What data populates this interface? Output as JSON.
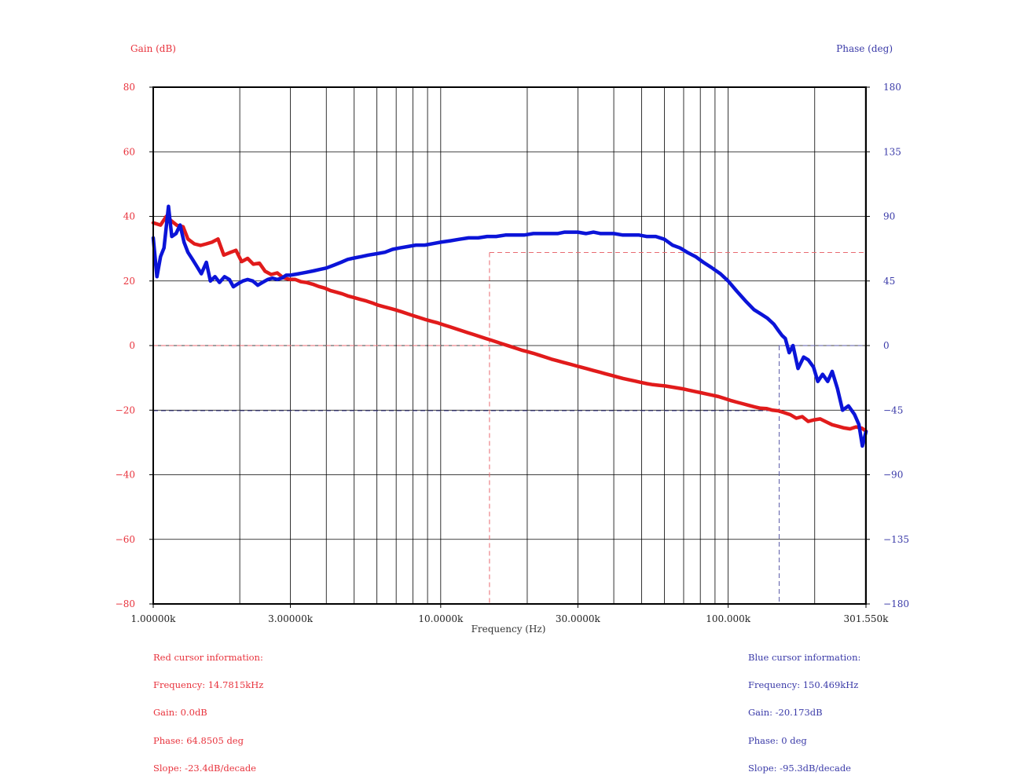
{
  "chart_data": {
    "type": "line",
    "xscale": "log",
    "xlabel": "Frequency (Hz)",
    "ylabel_left": "Gain (dB)",
    "ylabel_right": "Phase (deg)",
    "xlim": [
      1000,
      301550
    ],
    "ylim_left": [
      -80,
      80
    ],
    "ylim_right": [
      -180,
      180
    ],
    "grid": true,
    "x_ticks": [
      {
        "value": 1000,
        "label": "1.00000k"
      },
      {
        "value": 3000,
        "label": "3.00000k"
      },
      {
        "value": 10000,
        "label": "10.0000k"
      },
      {
        "value": 30000,
        "label": "30.0000k"
      },
      {
        "value": 100000,
        "label": "100.000k"
      },
      {
        "value": 301550,
        "label": "301.550k"
      }
    ],
    "left_ticks": [
      {
        "value": 80,
        "label": "80"
      },
      {
        "value": 60,
        "label": "60"
      },
      {
        "value": 40,
        "label": "40"
      },
      {
        "value": 20,
        "label": "20"
      },
      {
        "value": 0,
        "label": "0"
      },
      {
        "value": -20,
        "label": "−20"
      },
      {
        "value": -40,
        "label": "−40"
      },
      {
        "value": -60,
        "label": "−60"
      },
      {
        "value": -80,
        "label": "−80"
      }
    ],
    "right_ticks": [
      {
        "value": 180,
        "label": "180"
      },
      {
        "value": 135,
        "label": "135"
      },
      {
        "value": 90,
        "label": "90"
      },
      {
        "value": 45,
        "label": "45"
      },
      {
        "value": 0,
        "label": "0"
      },
      {
        "value": -45,
        "label": "−45"
      },
      {
        "value": -90,
        "label": "−90"
      },
      {
        "value": -135,
        "label": "−135"
      },
      {
        "value": -180,
        "label": "−180"
      }
    ],
    "series": [
      {
        "name": "Gain",
        "axis": "left",
        "color": "#e11b1b",
        "x": [
          1000,
          1060,
          1110,
          1160,
          1210,
          1270,
          1320,
          1390,
          1460,
          1530,
          1600,
          1680,
          1760,
          1850,
          1940,
          2030,
          2130,
          2230,
          2340,
          2450,
          2570,
          2700,
          2830,
          2970,
          3110,
          3260,
          3420,
          3590,
          3760,
          3950,
          4140,
          4340,
          4550,
          4780,
          5010,
          5250,
          5510,
          5780,
          6060,
          6360,
          6670,
          7000,
          7340,
          7700,
          8080,
          8470,
          8890,
          9320,
          9780,
          10260,
          10760,
          11290,
          11840,
          12420,
          13030,
          13670,
          14340,
          15040,
          15780,
          16550,
          17360,
          18210,
          19100,
          20040,
          21020,
          22050,
          23130,
          24260,
          25450,
          26700,
          28010,
          29380,
          30820,
          32330,
          33910,
          35580,
          37320,
          39150,
          41070,
          43080,
          45190,
          47400,
          49730,
          52160,
          54720,
          57400,
          60220,
          63170,
          66260,
          69510,
          72920,
          76490,
          80240,
          84170,
          88300,
          92630,
          97170,
          101930,
          106920,
          112160,
          117660,
          123430,
          129480,
          135830,
          142490,
          149470,
          156800,
          164480,
          172540,
          180990,
          189860,
          199160,
          208920,
          219160,
          229900,
          241170,
          252980,
          265380,
          278380,
          292030,
          301550
        ],
        "y": [
          38,
          37.3,
          40,
          38.5,
          37.2,
          36.8,
          33,
          31.5,
          31,
          31.5,
          32,
          33,
          28,
          28.8,
          29.5,
          26,
          27,
          25.2,
          25.5,
          23,
          22,
          22.5,
          21,
          20.5,
          20.5,
          19.8,
          19.5,
          19,
          18.3,
          17.8,
          17,
          16.5,
          16,
          15.3,
          14.8,
          14.3,
          13.8,
          13.2,
          12.5,
          12,
          11.5,
          11,
          10.4,
          9.8,
          9.2,
          8.6,
          8,
          7.5,
          7,
          6.4,
          5.8,
          5.2,
          4.6,
          4,
          3.4,
          2.8,
          2.2,
          1.6,
          1,
          0.4,
          -0.2,
          -0.8,
          -1.4,
          -1.9,
          -2.4,
          -3,
          -3.6,
          -4.2,
          -4.7,
          -5.2,
          -5.7,
          -6.2,
          -6.7,
          -7.2,
          -7.7,
          -8.2,
          -8.7,
          -9.2,
          -9.7,
          -10.2,
          -10.6,
          -11,
          -11.4,
          -11.8,
          -12.1,
          -12.3,
          -12.5,
          -12.8,
          -13.1,
          -13.4,
          -13.8,
          -14.2,
          -14.6,
          -15,
          -15.4,
          -15.8,
          -16.4,
          -17,
          -17.5,
          -18,
          -18.5,
          -19,
          -19.4,
          -19.5,
          -20,
          -20.2,
          -20.8,
          -21.4,
          -22.5,
          -22,
          -23.5,
          -23,
          -22.7,
          -23.6,
          -24.5,
          -25,
          -25.5,
          -25.8,
          -25.2,
          -25.6,
          -26.5
        ]
      },
      {
        "name": "Phase",
        "axis": "right",
        "color": "#0b14d8",
        "x": [
          1000,
          1030,
          1060,
          1090,
          1130,
          1160,
          1200,
          1240,
          1280,
          1320,
          1370,
          1420,
          1470,
          1530,
          1580,
          1640,
          1700,
          1770,
          1840,
          1900,
          1970,
          2050,
          2130,
          2220,
          2310,
          2400,
          2500,
          2600,
          2700,
          2800,
          2900,
          3000,
          3200,
          3400,
          3600,
          3800,
          4000,
          4250,
          4500,
          4750,
          5000,
          5300,
          5600,
          6000,
          6400,
          6800,
          7200,
          7700,
          8200,
          8800,
          9400,
          10000,
          10800,
          11600,
          12500,
          13500,
          14500,
          15600,
          16800,
          18000,
          19500,
          21000,
          22500,
          24000,
          25500,
          27000,
          28500,
          30000,
          32000,
          34000,
          36000,
          38000,
          40000,
          43000,
          46000,
          49000,
          52000,
          56000,
          60000,
          64000,
          68000,
          72000,
          77000,
          82000,
          88000,
          94000,
          100000,
          107000,
          115000,
          123000,
          130000,
          137000,
          144000,
          150000,
          154000,
          158000,
          163000,
          168000,
          175000,
          183000,
          190000,
          198000,
          205000,
          213000,
          222000,
          230000,
          240000,
          250000,
          262000,
          275000,
          285000,
          293000,
          301550
        ],
        "y": [
          75,
          48,
          62,
          68,
          97,
          76,
          78,
          84,
          72,
          65,
          60,
          55,
          50,
          58,
          45,
          48,
          44,
          48,
          46,
          41,
          43,
          45,
          46,
          45,
          42,
          44,
          46,
          47,
          46,
          47,
          49,
          49,
          50,
          51,
          52,
          53,
          54,
          56,
          58,
          60,
          61,
          62,
          63,
          64,
          65,
          67,
          68,
          69,
          70,
          70,
          71,
          72,
          73,
          74,
          75,
          75,
          76,
          76,
          77,
          77,
          77,
          78,
          78,
          78,
          78,
          79,
          79,
          79,
          78,
          79,
          78,
          78,
          78,
          77,
          77,
          77,
          76,
          76,
          74,
          70,
          68,
          65,
          62,
          58,
          54,
          50,
          45,
          38,
          31,
          25,
          22,
          19,
          15,
          10,
          7,
          5,
          -5,
          0,
          -16,
          -8,
          -10,
          -15,
          -25,
          -20,
          -25,
          -18,
          -30,
          -45,
          -42,
          -48,
          -55,
          -70,
          -60
        ]
      }
    ],
    "red_cursor": {
      "freq": 14781.5,
      "gain": 0.0,
      "phase": 64.8505
    },
    "blue_cursor": {
      "freq": 150469,
      "gain": -20.173,
      "phase": 0
    }
  },
  "red_info": {
    "title": "Red cursor information:",
    "frequency": "Frequency: 14.7815kHz",
    "gain": "Gain: 0.0dB",
    "phase": "Phase: 64.8505 deg",
    "slope": "Slope: -23.4dB/decade"
  },
  "blue_info": {
    "title": "Blue cursor information:",
    "frequency": "Frequency: 150.469kHz",
    "gain": "Gain: -20.173dB",
    "phase": "Phase: 0 deg",
    "slope": "Slope: -95.3dB/decade"
  },
  "colors": {
    "gain_text": "#e8323c",
    "phase_text": "#3a3aa8",
    "gain_line": "#e11b1b",
    "phase_line": "#0b14d8"
  }
}
